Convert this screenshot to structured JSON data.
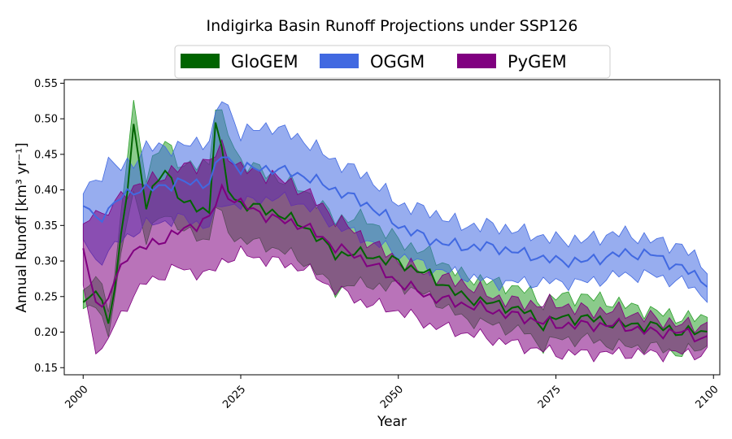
{
  "chart_data": {
    "type": "area",
    "title": "Indigirka Basin Runoff Projections under SSP126",
    "xlabel": "Year",
    "ylabel": "Annual Runoff [km³ yr⁻¹]",
    "xlim": [
      1997,
      2101
    ],
    "ylim": [
      0.14,
      0.555
    ],
    "xticks": [
      2000,
      2025,
      2050,
      2075,
      2100
    ],
    "yticks": [
      0.15,
      0.2,
      0.25,
      0.3,
      0.35,
      0.4,
      0.45,
      0.5,
      0.55
    ],
    "legend_position": "top-center",
    "grid": false,
    "series_style": "median line with min-max shaded band",
    "series": [
      {
        "name": "GloGEM",
        "color": "#006400",
        "band_color": "#2ca02c",
        "anchors": {
          "x": [
            2000,
            2002,
            2004,
            2005,
            2006,
            2007,
            2008,
            2010,
            2013,
            2016,
            2020,
            2021,
            2023,
            2025,
            2030,
            2035,
            2040,
            2045,
            2048,
            2050,
            2052,
            2055,
            2060,
            2065,
            2070,
            2073,
            2075,
            2080,
            2085,
            2090,
            2095,
            2099
          ],
          "lower": [
            0.225,
            0.24,
            0.2,
            0.25,
            0.3,
            0.36,
            0.4,
            0.33,
            0.37,
            0.34,
            0.33,
            0.38,
            0.34,
            0.33,
            0.32,
            0.3,
            0.26,
            0.27,
            0.26,
            0.27,
            0.26,
            0.25,
            0.22,
            0.21,
            0.2,
            0.18,
            0.19,
            0.19,
            0.18,
            0.18,
            0.17,
            0.18
          ],
          "median": [
            0.235,
            0.26,
            0.22,
            0.26,
            0.33,
            0.4,
            0.49,
            0.38,
            0.43,
            0.38,
            0.37,
            0.5,
            0.4,
            0.38,
            0.37,
            0.35,
            0.31,
            0.31,
            0.3,
            0.3,
            0.29,
            0.28,
            0.25,
            0.24,
            0.23,
            0.21,
            0.22,
            0.22,
            0.21,
            0.21,
            0.2,
            0.2
          ],
          "upper": [
            0.25,
            0.28,
            0.24,
            0.28,
            0.36,
            0.45,
            0.52,
            0.42,
            0.47,
            0.43,
            0.44,
            0.52,
            0.48,
            0.44,
            0.42,
            0.4,
            0.36,
            0.36,
            0.34,
            0.33,
            0.32,
            0.31,
            0.28,
            0.27,
            0.26,
            0.24,
            0.25,
            0.25,
            0.24,
            0.23,
            0.22,
            0.22
          ]
        }
      },
      {
        "name": "OGGM",
        "color": "#4169e1",
        "band_color": "#4169e1",
        "anchors": {
          "x": [
            2000,
            2002,
            2004,
            2006,
            2008,
            2010,
            2015,
            2020,
            2022,
            2025,
            2030,
            2035,
            2040,
            2045,
            2050,
            2055,
            2060,
            2065,
            2070,
            2075,
            2080,
            2085,
            2090,
            2095,
            2099
          ],
          "lower": [
            0.33,
            0.3,
            0.31,
            0.33,
            0.34,
            0.35,
            0.36,
            0.35,
            0.38,
            0.38,
            0.39,
            0.38,
            0.35,
            0.33,
            0.31,
            0.29,
            0.28,
            0.27,
            0.27,
            0.27,
            0.27,
            0.28,
            0.28,
            0.27,
            0.25
          ],
          "median": [
            0.38,
            0.36,
            0.37,
            0.39,
            0.4,
            0.4,
            0.41,
            0.41,
            0.45,
            0.43,
            0.43,
            0.42,
            0.4,
            0.38,
            0.35,
            0.33,
            0.32,
            0.32,
            0.31,
            0.3,
            0.3,
            0.31,
            0.31,
            0.29,
            0.27
          ],
          "upper": [
            0.4,
            0.41,
            0.44,
            0.43,
            0.44,
            0.46,
            0.46,
            0.47,
            0.53,
            0.48,
            0.49,
            0.47,
            0.44,
            0.42,
            0.38,
            0.37,
            0.35,
            0.35,
            0.34,
            0.33,
            0.33,
            0.34,
            0.33,
            0.32,
            0.29
          ]
        }
      },
      {
        "name": "PyGEM",
        "color": "#800080",
        "band_color": "#800080",
        "anchors": {
          "x": [
            2000,
            2002,
            2003,
            2005,
            2007,
            2010,
            2015,
            2020,
            2022,
            2025,
            2030,
            2035,
            2040,
            2045,
            2050,
            2055,
            2060,
            2065,
            2070,
            2075,
            2080,
            2085,
            2090,
            2095,
            2099
          ],
          "lower": [
            0.26,
            0.18,
            0.17,
            0.21,
            0.24,
            0.27,
            0.29,
            0.28,
            0.3,
            0.31,
            0.3,
            0.29,
            0.26,
            0.24,
            0.23,
            0.21,
            0.2,
            0.19,
            0.18,
            0.17,
            0.17,
            0.17,
            0.17,
            0.17,
            0.17
          ],
          "median": [
            0.31,
            0.25,
            0.23,
            0.27,
            0.31,
            0.32,
            0.34,
            0.36,
            0.4,
            0.38,
            0.36,
            0.35,
            0.32,
            0.3,
            0.27,
            0.25,
            0.24,
            0.23,
            0.22,
            0.21,
            0.21,
            0.21,
            0.2,
            0.2,
            0.19
          ],
          "upper": [
            0.34,
            0.38,
            0.36,
            0.38,
            0.4,
            0.41,
            0.43,
            0.44,
            0.46,
            0.43,
            0.42,
            0.4,
            0.36,
            0.33,
            0.3,
            0.28,
            0.27,
            0.25,
            0.24,
            0.24,
            0.23,
            0.23,
            0.22,
            0.21,
            0.21
          ]
        }
      }
    ]
  }
}
